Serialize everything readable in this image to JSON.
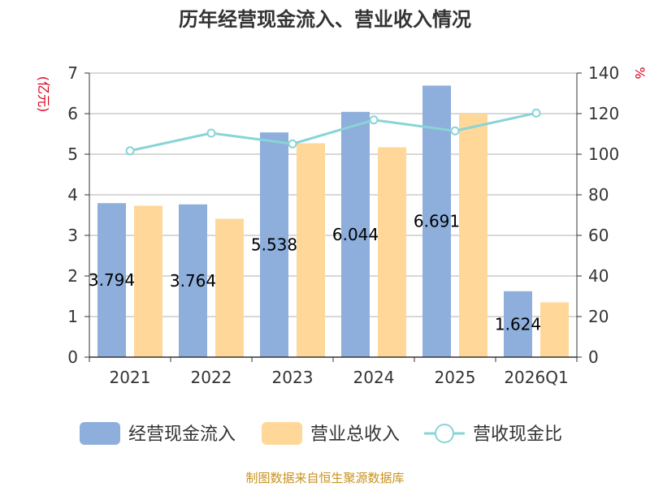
{
  "colors": {
    "cash_inflow": "#8eaedc",
    "revenue": "#ffd799",
    "ratio": "#88d4d6",
    "unit_red": "#d9001b",
    "source": "#c8921e"
  },
  "source_note": "制图数据来自恒生聚源数据库",
  "chart_data": {
    "type": "bar",
    "title": "历年经营现金流入、营业收入情况",
    "categories": [
      "2021",
      "2022",
      "2023",
      "2024",
      "2025",
      "2026Q1"
    ],
    "series": [
      {
        "name": "经营现金流入",
        "type": "bar",
        "axis": "left",
        "values": [
          3.794,
          3.764,
          5.538,
          6.044,
          6.691,
          1.624
        ],
        "data_labels": [
          "3.794",
          "3.764",
          "5.538",
          "6.044",
          "6.691",
          "1.624"
        ]
      },
      {
        "name": "营业总收入",
        "type": "bar",
        "axis": "left",
        "values": [
          3.73,
          3.41,
          5.27,
          5.17,
          6.0,
          1.35
        ]
      },
      {
        "name": "营收现金比",
        "type": "line",
        "axis": "right",
        "values": [
          101.7,
          110.4,
          105.1,
          116.9,
          111.5,
          120.3
        ]
      }
    ],
    "y_left": {
      "label": "(亿元)",
      "min": 0,
      "max": 7,
      "ticks": [
        0,
        1,
        2,
        3,
        4,
        5,
        6,
        7
      ]
    },
    "y_right": {
      "label": "%",
      "min": 0,
      "max": 140,
      "ticks": [
        0,
        20,
        40,
        60,
        80,
        100,
        120,
        140
      ]
    },
    "grid": true,
    "legend_position": "bottom"
  }
}
